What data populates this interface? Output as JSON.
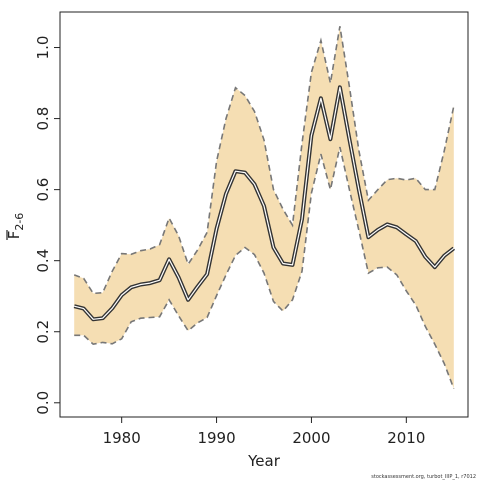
{
  "chart_data": {
    "type": "line",
    "title": "",
    "xlabel": "Year",
    "ylabel_main": "F",
    "ylabel_sub": "2-6",
    "xlim": [
      1973.5,
      2016.5
    ],
    "ylim": [
      -0.04,
      1.1
    ],
    "x_ticks": [
      1980,
      1990,
      2000,
      2010
    ],
    "y_ticks": [
      0.0,
      0.2,
      0.4,
      0.6,
      0.8,
      1.0
    ],
    "y_tick_labels": [
      "0.0",
      "0.2",
      "0.4",
      "0.6",
      "0.8",
      "1.0"
    ],
    "grid": false,
    "band_color": "#f5deb3",
    "line_color": "#333333",
    "years": [
      1975,
      1976,
      1977,
      1978,
      1979,
      1980,
      1981,
      1982,
      1983,
      1984,
      1985,
      1986,
      1987,
      1988,
      1989,
      1990,
      1991,
      1992,
      1993,
      1994,
      1995,
      1996,
      1997,
      1998,
      1999,
      2000,
      2001,
      2002,
      2003,
      2004,
      2005,
      2006,
      2007,
      2008,
      2009,
      2010,
      2011,
      2012,
      2013,
      2014,
      2015
    ],
    "series": [
      {
        "values": [
          0.272,
          0.265,
          0.235,
          0.238,
          0.266,
          0.303,
          0.325,
          0.333,
          0.337,
          0.345,
          0.404,
          0.353,
          0.29,
          0.327,
          0.362,
          0.49,
          0.588,
          0.652,
          0.648,
          0.615,
          0.554,
          0.437,
          0.392,
          0.388,
          0.517,
          0.752,
          0.857,
          0.742,
          0.888,
          0.742,
          0.6,
          0.466,
          0.487,
          0.502,
          0.494,
          0.474,
          0.455,
          0.411,
          0.382,
          0.414,
          0.435
        ],
        "lower": [
          0.19,
          0.19,
          0.165,
          0.17,
          0.166,
          0.18,
          0.228,
          0.238,
          0.24,
          0.242,
          0.29,
          0.245,
          0.203,
          0.225,
          0.24,
          0.302,
          0.36,
          0.415,
          0.437,
          0.417,
          0.365,
          0.285,
          0.258,
          0.29,
          0.37,
          0.59,
          0.7,
          0.6,
          0.72,
          0.6,
          0.485,
          0.365,
          0.38,
          0.382,
          0.36,
          0.315,
          0.275,
          0.215,
          0.165,
          0.11,
          0.04
        ],
        "upper": [
          0.36,
          0.35,
          0.308,
          0.31,
          0.37,
          0.42,
          0.418,
          0.428,
          0.433,
          0.445,
          0.52,
          0.47,
          0.39,
          0.43,
          0.48,
          0.68,
          0.8,
          0.887,
          0.865,
          0.82,
          0.74,
          0.6,
          0.545,
          0.5,
          0.73,
          0.93,
          1.02,
          0.9,
          1.06,
          0.89,
          0.71,
          0.57,
          0.6,
          0.628,
          0.632,
          0.627,
          0.632,
          0.6,
          0.6,
          0.71,
          0.835
        ]
      }
    ],
    "footnote": "stockassessment.org, turbot_IIIP_1, r7012"
  }
}
